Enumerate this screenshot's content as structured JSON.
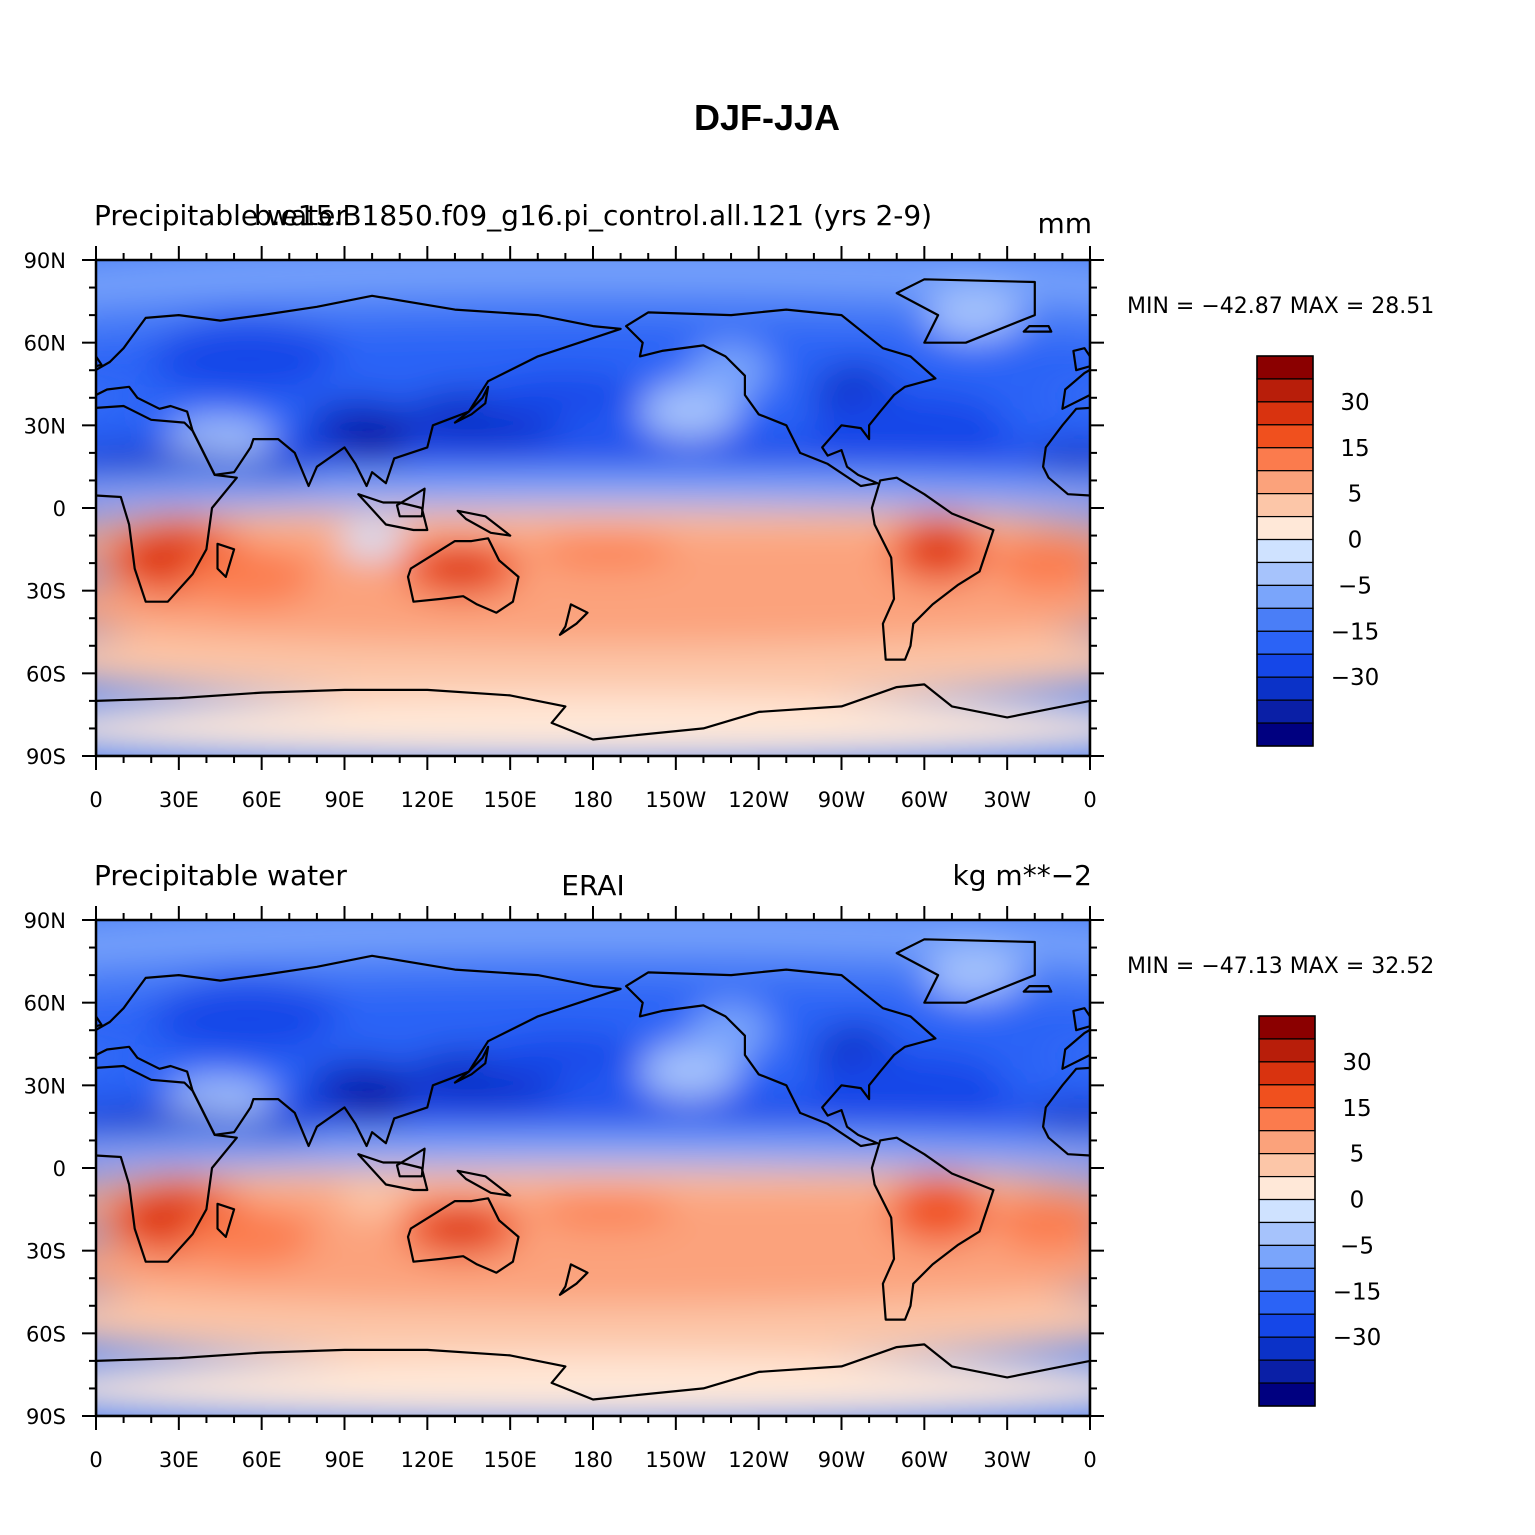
{
  "title": "DJF-JJA",
  "colors": {
    "scale": [
      "#000080",
      "#0a1fa6",
      "#0b32c8",
      "#1547e8",
      "#2b63f6",
      "#4a7ef7",
      "#7aa5fb",
      "#a6c3fc",
      "#cfe2ff",
      "#ffe8d8",
      "#fcc6a8",
      "#fba27b",
      "#fb7b4d",
      "#f0501e",
      "#d9330f",
      "#b81e0a",
      "#8b0000"
    ],
    "land_outline": "#000000"
  },
  "panels": [
    {
      "id": "top",
      "left_label": "Precipitable water",
      "center_label": "b.e15.B1850.f09_g16.pi_control.all.121 (yrs 2-9)",
      "right_label": "mm",
      "stats": {
        "min_label": "MIN =",
        "min": "−42.87",
        "max_label": "MAX =",
        "max": "28.51"
      }
    },
    {
      "id": "bottom",
      "left_label": "Precipitable water",
      "center_label": "ERAI",
      "right_label": "kg m**−2",
      "stats": {
        "min_label": "MIN =",
        "min": "−47.13",
        "max_label": "MAX =",
        "max": "32.52"
      }
    }
  ],
  "axes": {
    "lon_ticks": [
      "0",
      "30E",
      "60E",
      "90E",
      "120E",
      "150E",
      "180",
      "150W",
      "120W",
      "90W",
      "60W",
      "30W",
      "0"
    ],
    "lat_ticks": [
      "90N",
      "60N",
      "30N",
      "0",
      "30S",
      "60S",
      "90S"
    ]
  },
  "colorbar": {
    "tick_labels": [
      "30",
      "15",
      "5",
      "0",
      "−5",
      "−15",
      "−30"
    ]
  },
  "chart_data": {
    "type": "heatmap",
    "title": "DJF-JJA",
    "x_range": [
      0,
      360
    ],
    "y_range": [
      -90,
      90
    ],
    "contour_levels": [
      -40,
      -35,
      -30,
      -25,
      -20,
      -15,
      -10,
      -5,
      -2,
      0,
      2,
      5,
      10,
      15,
      20,
      25,
      30,
      35
    ],
    "panels": [
      {
        "name": "b.e15.B1850.f09_g16.pi_control.all.121 (yrs 2-9)",
        "units": "mm",
        "min": -42.87,
        "max": 28.51
      },
      {
        "name": "ERAI",
        "units": "kg m**−2",
        "min": -47.13,
        "max": 32.52
      }
    ]
  }
}
